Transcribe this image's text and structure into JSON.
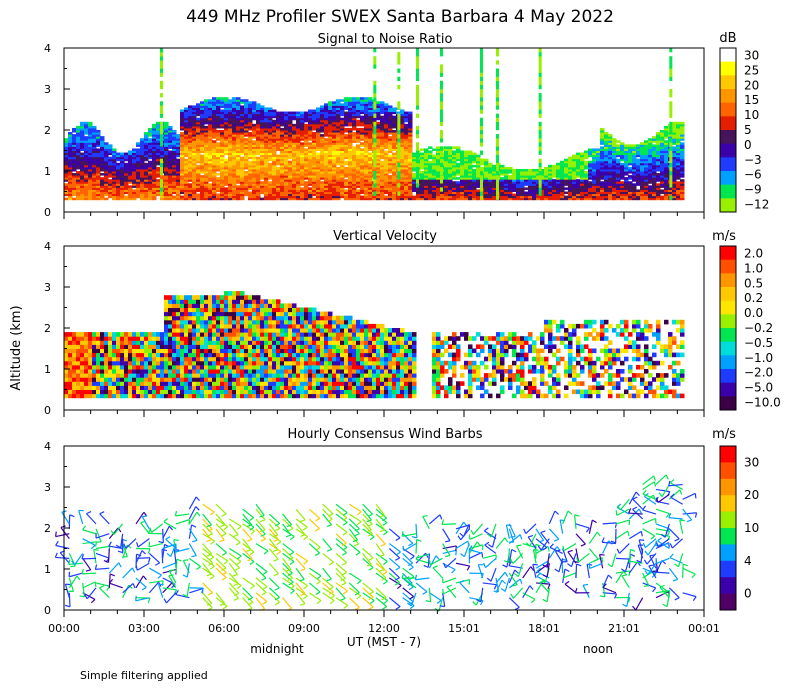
{
  "title": "449 MHz Profiler SWEX Santa Barbara  4 May 2022",
  "ylabel": "Altitude (km)",
  "x_axis": {
    "ticks": [
      "00:00",
      "03:00",
      "06:00",
      "09:00",
      "12:00",
      "15:01",
      "18:01",
      "21:01",
      "00:01"
    ],
    "label": "UT  (MST - 7)",
    "markers": [
      "midnight",
      "noon"
    ]
  },
  "footer": "Simple filtering applied",
  "chart_data": [
    {
      "type": "heatmap",
      "title": "Signal to Noise Ratio",
      "xlabel": "UT (MST - 7)",
      "ylabel": "Altitude (km)",
      "x_range_hours": [
        0,
        24
      ],
      "y_range_km": [
        0,
        4
      ],
      "y_ticks": [
        "0",
        "1",
        "2",
        "3",
        "4"
      ],
      "colorbar": {
        "unit": "dB",
        "levels": [
          "30",
          "25",
          "20",
          "15",
          "10",
          "5",
          "0",
          "−3",
          "−6",
          "−9",
          "−12"
        ],
        "colors": [
          "#ffffff",
          "#ffff00",
          "#ffc800",
          "#ff9600",
          "#ff6400",
          "#e61e00",
          "#46145a",
          "#3c00aa",
          "#1e3cff",
          "#00a0ff",
          "#00e650",
          "#96f000"
        ]
      }
    },
    {
      "type": "heatmap",
      "title": "Vertical Velocity",
      "xlabel": "UT (MST - 7)",
      "ylabel": "Altitude (km)",
      "x_range_hours": [
        0,
        24
      ],
      "y_range_km": [
        0,
        4
      ],
      "y_ticks": [
        "0",
        "1",
        "2",
        "3",
        "4"
      ],
      "colorbar": {
        "unit": "m/s",
        "levels": [
          "2.0",
          "1.0",
          "0.5",
          "0.2",
          "0.0",
          "−0.2",
          "−0.5",
          "−1.0",
          "−2.0",
          "−5.0",
          "−10.0"
        ],
        "colors": [
          "#ff0000",
          "#ff5000",
          "#ff9600",
          "#ffc800",
          "#ffe600",
          "#96f000",
          "#00e650",
          "#00dcdc",
          "#00a0ff",
          "#1e3cff",
          "#3c00aa",
          "#3c0046"
        ]
      }
    },
    {
      "type": "scatter",
      "title": "Hourly Consensus Wind Barbs",
      "xlabel": "UT (MST - 7)",
      "ylabel": "Altitude (km)",
      "x_range_hours": [
        0,
        24
      ],
      "y_range_km": [
        0,
        4
      ],
      "y_ticks": [
        "0",
        "1",
        "2",
        "3",
        "4"
      ],
      "colorbar": {
        "unit": "m/s",
        "levels": [
          "30",
          "20",
          "10",
          "4",
          "0"
        ],
        "colors": [
          "#ff0000",
          "#ff5000",
          "#ff9600",
          "#ffc800",
          "#96f000",
          "#00e650",
          "#00a0ff",
          "#1e3cff",
          "#3c00aa",
          "#500064"
        ]
      }
    }
  ]
}
